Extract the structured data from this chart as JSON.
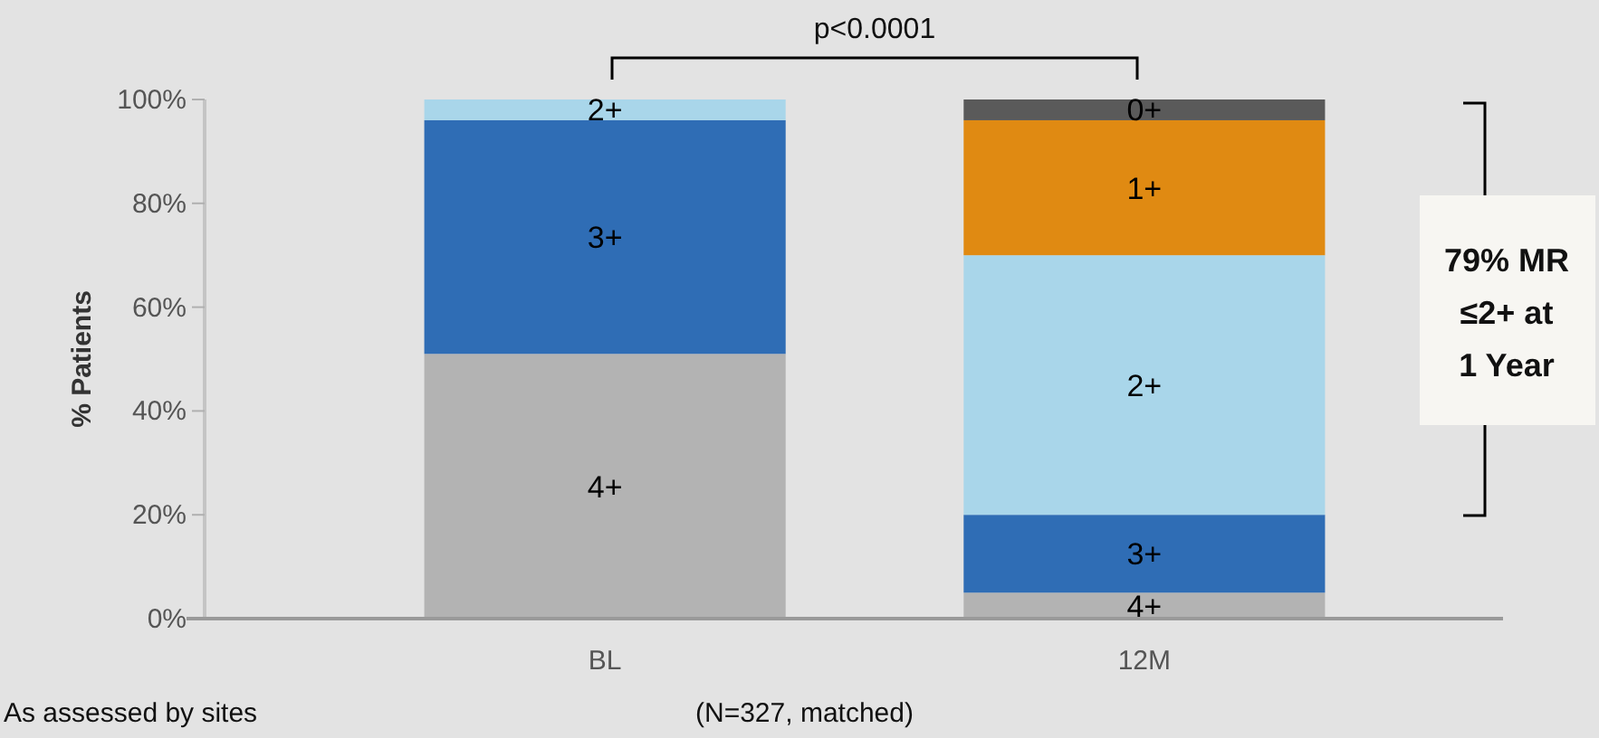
{
  "chart_data": {
    "type": "bar",
    "stacked": true,
    "ylabel": "% Patients",
    "categories": [
      "BL",
      "12M"
    ],
    "series": [
      {
        "name": "4+",
        "color": "#b3b3b3",
        "values": [
          51,
          5
        ]
      },
      {
        "name": "3+",
        "color": "#2f6db5",
        "values": [
          45,
          15
        ]
      },
      {
        "name": "2+",
        "color": "#a9d6ea",
        "values": [
          4,
          50
        ]
      },
      {
        "name": "1+",
        "color": "#e08a12",
        "values": [
          null,
          26
        ]
      },
      {
        "name": "0+",
        "color": "#5a5a5a",
        "values": [
          null,
          4
        ]
      }
    ],
    "ylim": [
      0,
      100
    ],
    "yticks": [
      {
        "value": 0,
        "label": "0%"
      },
      {
        "value": 20,
        "label": "20%"
      },
      {
        "value": 40,
        "label": "40%"
      },
      {
        "value": 60,
        "label": "60%"
      },
      {
        "value": 80,
        "label": "80%"
      },
      {
        "value": 100,
        "label": "100%"
      }
    ],
    "grid": false,
    "annotations": [
      "p<0.0001",
      "79% MR\n≤2+ at\n1 Year",
      "As assessed by sites",
      "(N=327, matched)"
    ]
  }
}
